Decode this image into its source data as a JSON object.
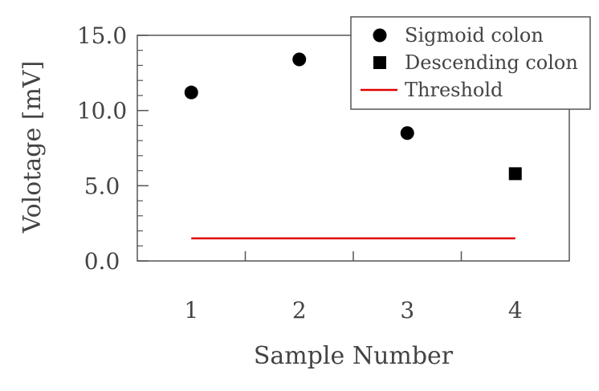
{
  "chart_data": {
    "type": "scatter",
    "title": "",
    "xlabel": "Sample Number",
    "ylabel": "Volotage [mV]",
    "xlim": [
      0.5,
      4.5
    ],
    "ylim": [
      0,
      15
    ],
    "x_ticks": [
      1,
      2,
      3,
      4
    ],
    "x_tick_labels": [
      "1",
      "2",
      "3",
      "4"
    ],
    "y_ticks": [
      0,
      5,
      10,
      15
    ],
    "y_tick_labels": [
      "0.0",
      "5.0",
      "10.0",
      "15.0"
    ],
    "y_minor_step": 1,
    "grid": false,
    "legend_position": "top-right",
    "series": [
      {
        "name": "Sigmoid colon",
        "marker": "circle",
        "color": "#000000",
        "points": [
          {
            "x": 1,
            "y": 11.2
          },
          {
            "x": 2,
            "y": 13.4
          },
          {
            "x": 3,
            "y": 8.5
          }
        ]
      },
      {
        "name": "Descending colon",
        "marker": "square",
        "color": "#000000",
        "points": [
          {
            "x": 4,
            "y": 5.8
          }
        ]
      },
      {
        "name": "Threshold",
        "marker": "line",
        "color": "#e00000",
        "points": [
          {
            "x": 1,
            "y": 1.5
          },
          {
            "x": 4,
            "y": 1.5
          }
        ]
      }
    ]
  }
}
